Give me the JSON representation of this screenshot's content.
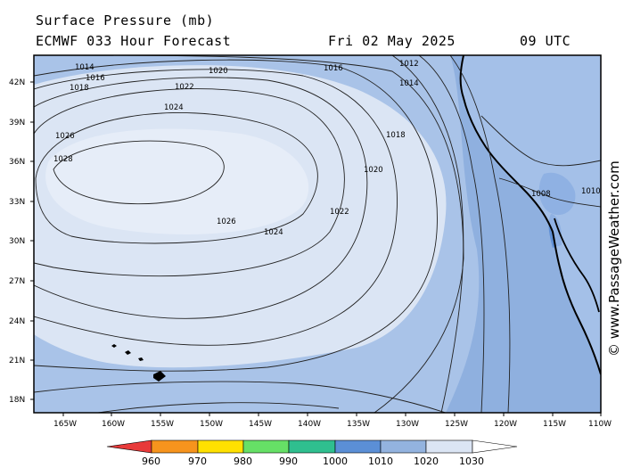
{
  "header": {
    "title": "Surface Pressure (mb)",
    "model": "ECMWF 033 Hour Forecast",
    "date": "Fri 02 May 2025",
    "time": "09 UTC"
  },
  "credit": "© www.PassageWeather.com",
  "axes": {
    "lat_labels": [
      "42N",
      "39N",
      "36N",
      "33N",
      "30N",
      "27N",
      "24N",
      "21N",
      "18N"
    ],
    "lon_labels": [
      "165W",
      "160W",
      "155W",
      "150W",
      "145W",
      "140W",
      "135W",
      "130W",
      "125W",
      "120W",
      "115W",
      "110W"
    ]
  },
  "isobar_labels": [
    {
      "text": "1014"
    },
    {
      "text": "1016"
    },
    {
      "text": "1018"
    },
    {
      "text": "1020"
    },
    {
      "text": "1022"
    },
    {
      "text": "1024"
    },
    {
      "text": "1026"
    },
    {
      "text": "1028"
    },
    {
      "text": "1026"
    },
    {
      "text": "1024"
    },
    {
      "text": "1022"
    },
    {
      "text": "1020"
    },
    {
      "text": "1018"
    },
    {
      "text": "1016"
    },
    {
      "text": "1014"
    },
    {
      "text": "1012"
    },
    {
      "text": "1010"
    },
    {
      "text": "1008"
    }
  ],
  "legend": {
    "ticks": [
      "960",
      "970",
      "980",
      "990",
      "1000",
      "1010",
      "1020",
      "1030"
    ],
    "colors": [
      "#e83a3a",
      "#f7941d",
      "#ffe100",
      "#66e066",
      "#2fbf8f",
      "#5b8fd6",
      "#93b3df",
      "#dbe5f4"
    ],
    "unit": "mb"
  }
}
